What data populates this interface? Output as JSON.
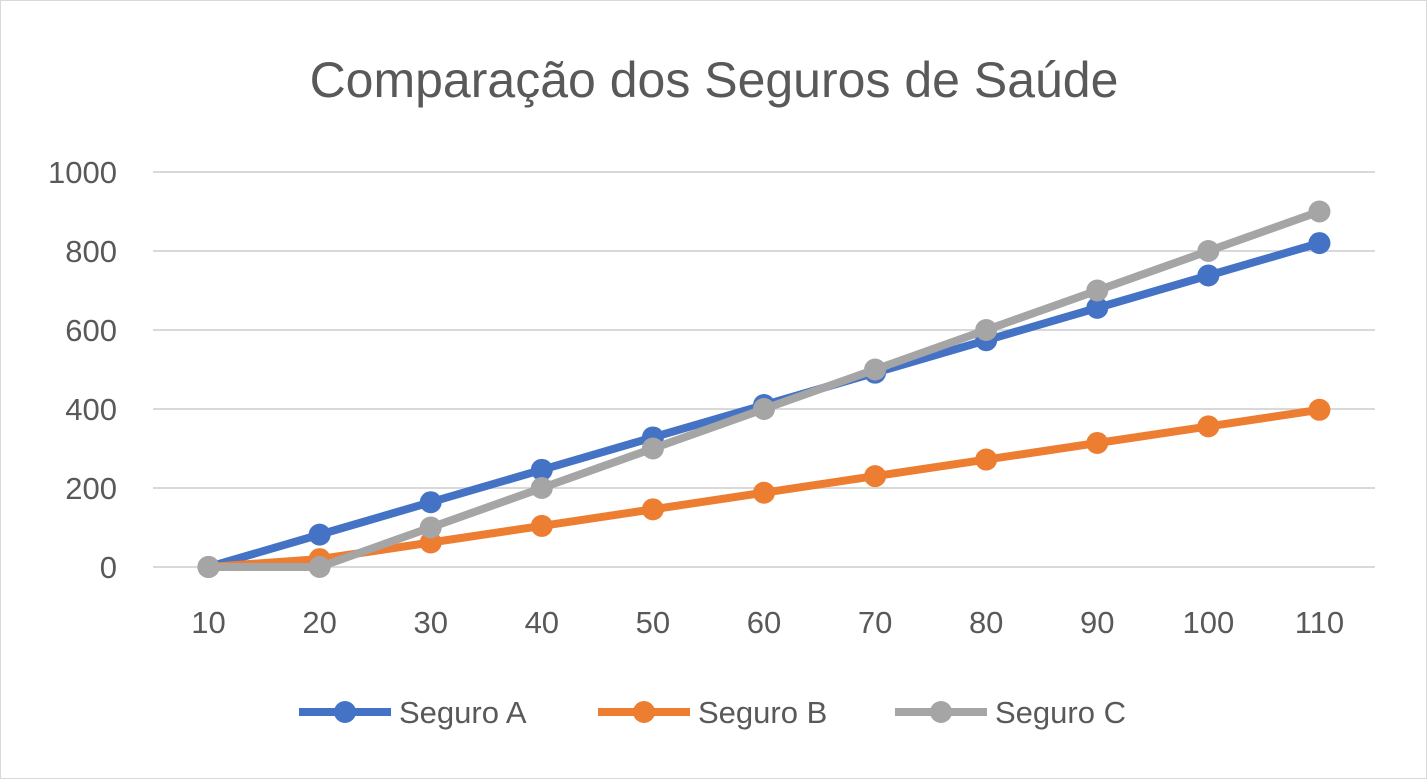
{
  "chart_data": {
    "type": "line",
    "title": "Comparação dos Seguros de Saúde",
    "xlabel": "",
    "ylabel": "",
    "categories": [
      "10",
      "20",
      "30",
      "40",
      "50",
      "60",
      "70",
      "80",
      "90",
      "100",
      "110"
    ],
    "ylim": [
      0,
      1000
    ],
    "yticks": [
      "0",
      "200",
      "400",
      "600",
      "800",
      "1000"
    ],
    "grid": true,
    "legend_position": "bottom",
    "series": [
      {
        "name": "Seguro A",
        "color": "#4472C4",
        "values": [
          0,
          82,
          164,
          246,
          328,
          410,
          492,
          574,
          656,
          738,
          820
        ]
      },
      {
        "name": "Seguro B",
        "color": "#ED7D31",
        "values": [
          0,
          20,
          62,
          104,
          146,
          188,
          230,
          272,
          314,
          356,
          398
        ]
      },
      {
        "name": "Seguro C",
        "color": "#A5A5A5",
        "values": [
          0,
          0,
          100,
          200,
          300,
          400,
          500,
          600,
          700,
          800,
          900
        ]
      }
    ]
  }
}
